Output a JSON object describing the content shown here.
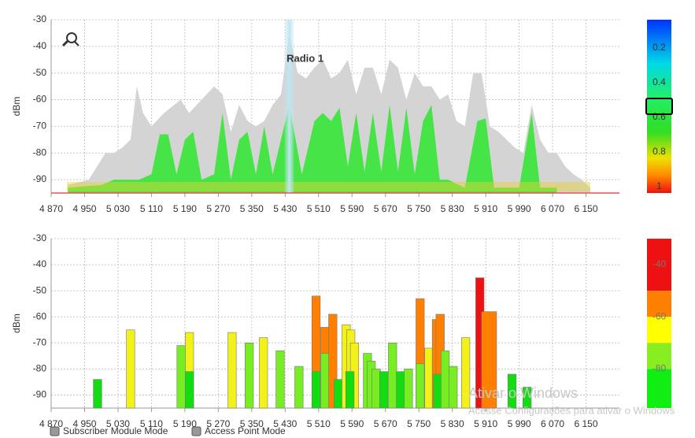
{
  "chart_data": [
    {
      "type": "area",
      "y_label": "dBm",
      "xlim": [
        4870,
        6230
      ],
      "ylim": [
        -95,
        -30
      ],
      "xticks": [
        {
          "value": 4870,
          "label": "4 870"
        },
        {
          "value": 4950,
          "label": "4 950"
        },
        {
          "value": 5030,
          "label": "5 030"
        },
        {
          "value": 5110,
          "label": "5 110"
        },
        {
          "value": 5190,
          "label": "5 190"
        },
        {
          "value": 5270,
          "label": "5 270"
        },
        {
          "value": 5350,
          "label": "5 350"
        },
        {
          "value": 5430,
          "label": "5 430"
        },
        {
          "value": 5510,
          "label": "5 510"
        },
        {
          "value": 5590,
          "label": "5 590"
        },
        {
          "value": 5670,
          "label": "5 670"
        },
        {
          "value": 5750,
          "label": "5 750"
        },
        {
          "value": 5830,
          "label": "5 830"
        },
        {
          "value": 5910,
          "label": "5 910"
        },
        {
          "value": 5990,
          "label": "5 990"
        },
        {
          "value": 6070,
          "label": "6 070"
        },
        {
          "value": 6150,
          "label": "6 150"
        }
      ],
      "yticks": [
        -30,
        -40,
        -50,
        -60,
        -70,
        -80,
        -90
      ],
      "grid": true,
      "annotation": {
        "text": "Radio 1",
        "x": 5440
      },
      "series": [
        {
          "color": "#d4d4d4",
          "x": [
            4910,
            4960,
            4980,
            5000,
            5020,
            5040,
            5060,
            5075,
            5090,
            5110,
            5140,
            5180,
            5200,
            5230,
            5260,
            5280,
            5300,
            5320,
            5340,
            5360,
            5380,
            5400,
            5420,
            5440,
            5460,
            5480,
            5500,
            5520,
            5540,
            5560,
            5580,
            5600,
            5620,
            5640,
            5660,
            5680,
            5700,
            5720,
            5740,
            5760,
            5780,
            5800,
            5820,
            5840,
            5860,
            5880,
            5900,
            5920,
            5940,
            5960,
            5980,
            6000,
            6020,
            6040,
            6060,
            6080,
            6100,
            6120,
            6140,
            6160
          ],
          "values": [
            -92,
            -90,
            -85,
            -80,
            -80,
            -78,
            -75,
            -55,
            -65,
            -70,
            -65,
            -60,
            -65,
            -60,
            -55,
            -58,
            -72,
            -62,
            -68,
            -70,
            -68,
            -62,
            -58,
            -35,
            -50,
            -52,
            -48,
            -45,
            -52,
            -50,
            -45,
            -58,
            -48,
            -48,
            -58,
            -45,
            -48,
            -60,
            -50,
            -55,
            -55,
            -60,
            -58,
            -68,
            -70,
            -50,
            -50,
            -70,
            -72,
            -75,
            -78,
            -80,
            -62,
            -75,
            -80,
            -80,
            -85,
            -88,
            -90,
            -93
          ]
        },
        {
          "color": "#2ee62e",
          "x": [
            4910,
            4990,
            5020,
            5050,
            5080,
            5110,
            5130,
            5150,
            5170,
            5190,
            5210,
            5230,
            5260,
            5280,
            5300,
            5320,
            5340,
            5360,
            5380,
            5400,
            5440,
            5470,
            5500,
            5520,
            5540,
            5560,
            5580,
            5600,
            5620,
            5640,
            5660,
            5680,
            5700,
            5720,
            5740,
            5760,
            5780,
            5800,
            5820,
            5860,
            5890,
            5910,
            5930,
            5990,
            6020,
            6040,
            6080
          ],
          "values": [
            -93,
            -92,
            -90,
            -90,
            -90,
            -88,
            -73,
            -73,
            -88,
            -75,
            -72,
            -90,
            -88,
            -65,
            -90,
            -75,
            -72,
            -88,
            -70,
            -88,
            -62,
            -88,
            -68,
            -65,
            -68,
            -63,
            -85,
            -65,
            -87,
            -65,
            -87,
            -62,
            -87,
            -63,
            -88,
            -68,
            -62,
            -90,
            -90,
            -93,
            -68,
            -67,
            -93,
            -93,
            -65,
            -93,
            -93
          ]
        }
      ],
      "colorbar": {
        "lim": [
          0,
          1
        ],
        "ticks": [
          0.2,
          0.4,
          0.6,
          0.8,
          1
        ],
        "marker": 0.5,
        "stops": [
          {
            "offset": 0,
            "color": "#0033ff"
          },
          {
            "offset": 0.25,
            "color": "#00d8e8"
          },
          {
            "offset": 0.45,
            "color": "#22ee66"
          },
          {
            "offset": 0.65,
            "color": "#33dd22"
          },
          {
            "offset": 0.8,
            "color": "#f0e000"
          },
          {
            "offset": 0.9,
            "color": "#ff8800"
          },
          {
            "offset": 1,
            "color": "#ee1111"
          }
        ]
      }
    },
    {
      "type": "bar",
      "y_label": "dBm",
      "xlim": [
        4870,
        6230
      ],
      "ylim": [
        -95,
        -30
      ],
      "xticks": [
        {
          "value": 4870,
          "label": "4 870"
        },
        {
          "value": 4950,
          "label": "4 950"
        },
        {
          "value": 5030,
          "label": "5 030"
        },
        {
          "value": 5110,
          "label": "5 110"
        },
        {
          "value": 5190,
          "label": "5 190"
        },
        {
          "value": 5270,
          "label": "5 270"
        },
        {
          "value": 5350,
          "label": "5 350"
        },
        {
          "value": 5430,
          "label": "5 430"
        },
        {
          "value": 5510,
          "label": "5 510"
        },
        {
          "value": 5590,
          "label": "5 590"
        },
        {
          "value": 5670,
          "label": "5 670"
        },
        {
          "value": 5750,
          "label": "5 750"
        },
        {
          "value": 5830,
          "label": "5 830"
        },
        {
          "value": 5910,
          "label": "5 910"
        },
        {
          "value": 5990,
          "label": "5 990"
        },
        {
          "value": 6070,
          "label": "6 070"
        },
        {
          "value": 6150,
          "label": "6 150"
        }
      ],
      "yticks": [
        -30,
        -40,
        -50,
        -60,
        -70,
        -80,
        -90
      ],
      "grid": true,
      "x": [
        4981,
        5060,
        5181,
        5201,
        5201,
        5303,
        5344,
        5378,
        5418,
        5463,
        5504,
        5504,
        5525,
        5525,
        5544,
        5557,
        5576,
        5587,
        5596,
        5585,
        5627,
        5636,
        5648,
        5666,
        5687,
        5706,
        5725,
        5753,
        5753,
        5774,
        5792,
        5801,
        5795,
        5813,
        5832,
        5862,
        5896,
        5918,
        5973,
        6009
      ],
      "widths": [
        20,
        20,
        20,
        20,
        20,
        20,
        20,
        20,
        20,
        20,
        20,
        20,
        20,
        20,
        20,
        20,
        20,
        20,
        20,
        20,
        20,
        20,
        20,
        20,
        20,
        20,
        20,
        20,
        20,
        20,
        20,
        20,
        20,
        20,
        20,
        20,
        20,
        36,
        20,
        20
      ],
      "values": [
        -84,
        -65,
        -71,
        -66,
        -81,
        -66,
        -70,
        -68,
        -73,
        -79,
        -52,
        -81,
        -64,
        -74,
        -59,
        -84,
        -63,
        -65,
        -70,
        -81,
        -74,
        -77,
        -80,
        -81,
        -70,
        -81,
        -80,
        -53,
        -78,
        -72,
        -61,
        -59,
        -82,
        -73,
        -79,
        -68,
        -45,
        -58,
        -82,
        -87
      ],
      "colors": [
        "#11dd11",
        "#f2f21a",
        "#77ee22",
        "#f2f21a",
        "#11dd11",
        "#f2f21a",
        "#77ee22",
        "#f2f21a",
        "#77ee22",
        "#77ee22",
        "#ff8000",
        "#11dd11",
        "#ff8000",
        "#77ee22",
        "#ff8000",
        "#11dd11",
        "#f2f21a",
        "#f2f21a",
        "#f2f21a",
        "#11dd11",
        "#77ee22",
        "#77ee22",
        "#77ee22",
        "#11dd11",
        "#77ee22",
        "#11dd11",
        "#77ee22",
        "#ff8000",
        "#77ee22",
        "#f2f21a",
        "#ff8000",
        "#ff8000",
        "#11dd11",
        "#77ee22",
        "#77ee22",
        "#f2f21a",
        "#ee1111",
        "#ff8000",
        "#11dd11",
        "#11dd11"
      ],
      "colorbar": {
        "lim": [
          -95,
          -30
        ],
        "ticks": [
          -40,
          -60,
          -80
        ],
        "bands": [
          {
            "from": -30,
            "to": -50,
            "color": "#ee1111"
          },
          {
            "from": -50,
            "to": -60,
            "color": "#ff8000"
          },
          {
            "from": -60,
            "to": -70,
            "color": "#ffff00"
          },
          {
            "from": -70,
            "to": -80,
            "color": "#88ee22"
          },
          {
            "from": -80,
            "to": -95,
            "color": "#11ee11"
          }
        ]
      }
    }
  ],
  "modes": [
    "Subscriber Module Mode",
    "Access Point Mode"
  ],
  "watermark": {
    "title": "Ativar o Windows",
    "text": "Acesse Configurações para ativar o Windows"
  }
}
